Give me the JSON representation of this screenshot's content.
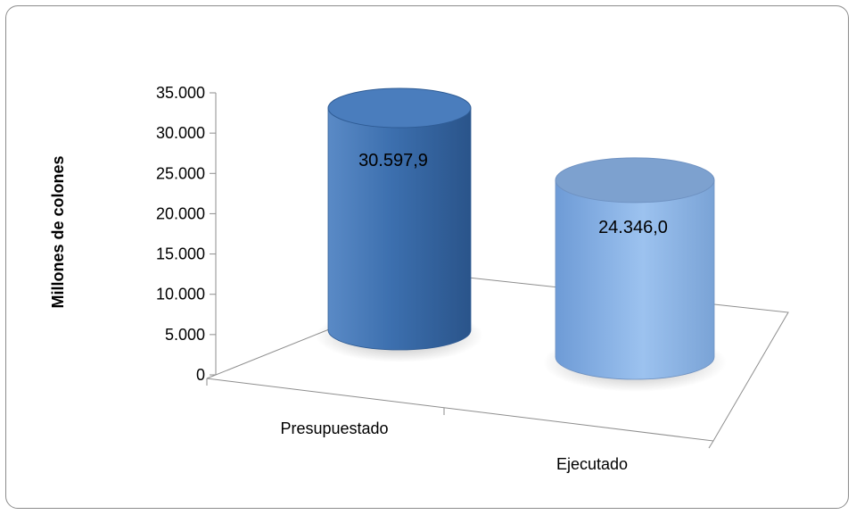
{
  "chart_data": {
    "type": "bar",
    "style": "3d-cylinder",
    "categories": [
      "Presupuestado",
      "Ejecutado"
    ],
    "values": [
      30597.9,
      24346.0
    ],
    "data_labels": [
      "30.597,9",
      "24.346,0"
    ],
    "ylabel": "Millones de colones",
    "xlabel": "",
    "title": "",
    "ylim": [
      0,
      35000
    ],
    "yticks": [
      0,
      5000,
      10000,
      15000,
      20000,
      25000,
      30000,
      35000
    ],
    "ytick_labels": [
      "0",
      "5.000",
      "10.000",
      "15.000",
      "20.000",
      "25.000",
      "30.000",
      "35.000"
    ],
    "grid": false,
    "legend": "none",
    "colors": [
      "#3f74b3",
      "#8fb6e6"
    ]
  }
}
